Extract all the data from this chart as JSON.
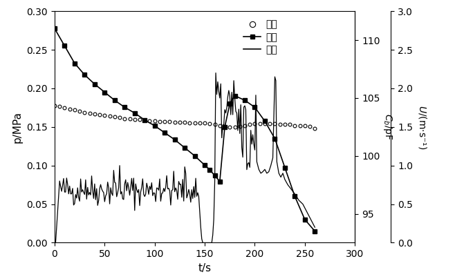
{
  "xlabel": "t/s",
  "ylabel_left": "p/MPa",
  "ylabel_cap": "$C_b$/pF",
  "ylabel_vel": "$U$/(m·s⁻¹)",
  "xlim": [
    0,
    300
  ],
  "ylim_left": [
    0.0,
    0.3
  ],
  "ylim_cap": [
    92.5,
    112.5
  ],
  "ylim_vel": [
    0.0,
    3.0
  ],
  "xticks": [
    0,
    50,
    100,
    150,
    200,
    250,
    300
  ],
  "yticks_left": [
    0.0,
    0.05,
    0.1,
    0.15,
    0.2,
    0.25,
    0.3
  ],
  "yticks_cap": [
    95,
    100,
    105,
    110
  ],
  "yticks_vel": [
    0.0,
    0.5,
    1.0,
    1.5,
    2.0,
    2.5,
    3.0
  ],
  "legend_labels": [
    "压力",
    "电容",
    "流速"
  ],
  "pressure_t": [
    0,
    5,
    10,
    15,
    20,
    25,
    30,
    35,
    40,
    45,
    50,
    55,
    60,
    65,
    70,
    75,
    80,
    85,
    90,
    95,
    100,
    105,
    110,
    115,
    120,
    125,
    130,
    135,
    140,
    145,
    150,
    155,
    160,
    165,
    170,
    175,
    180,
    185,
    190,
    195,
    200,
    205,
    210,
    215,
    220,
    225,
    230,
    235,
    240,
    245,
    250,
    255,
    260
  ],
  "pressure_p": [
    0.178,
    0.177,
    0.175,
    0.173,
    0.172,
    0.17,
    0.169,
    0.168,
    0.167,
    0.166,
    0.165,
    0.164,
    0.163,
    0.162,
    0.161,
    0.161,
    0.16,
    0.16,
    0.159,
    0.158,
    0.158,
    0.157,
    0.157,
    0.157,
    0.156,
    0.156,
    0.156,
    0.155,
    0.155,
    0.155,
    0.155,
    0.154,
    0.153,
    0.152,
    0.151,
    0.15,
    0.15,
    0.151,
    0.152,
    0.153,
    0.154,
    0.154,
    0.154,
    0.154,
    0.154,
    0.153,
    0.153,
    0.153,
    0.152,
    0.152,
    0.152,
    0.151,
    0.148
  ],
  "cap_t": [
    0,
    10,
    20,
    30,
    40,
    50,
    60,
    70,
    80,
    90,
    100,
    110,
    120,
    130,
    140,
    150,
    155,
    160,
    165,
    170,
    175,
    180,
    190,
    200,
    210,
    220,
    230,
    240,
    250,
    260
  ],
  "cap_c": [
    111.0,
    109.5,
    108.0,
    107.0,
    106.2,
    105.5,
    104.8,
    104.2,
    103.7,
    103.1,
    102.6,
    102.0,
    101.4,
    100.7,
    100.0,
    99.2,
    98.8,
    98.3,
    97.8,
    102.5,
    104.5,
    105.2,
    104.8,
    104.2,
    103.0,
    101.5,
    99.0,
    96.5,
    94.5,
    93.5
  ],
  "bg_color": "#ffffff",
  "line_color": "#000000",
  "figsize": [
    6.58,
    4.04
  ],
  "dpi": 100
}
